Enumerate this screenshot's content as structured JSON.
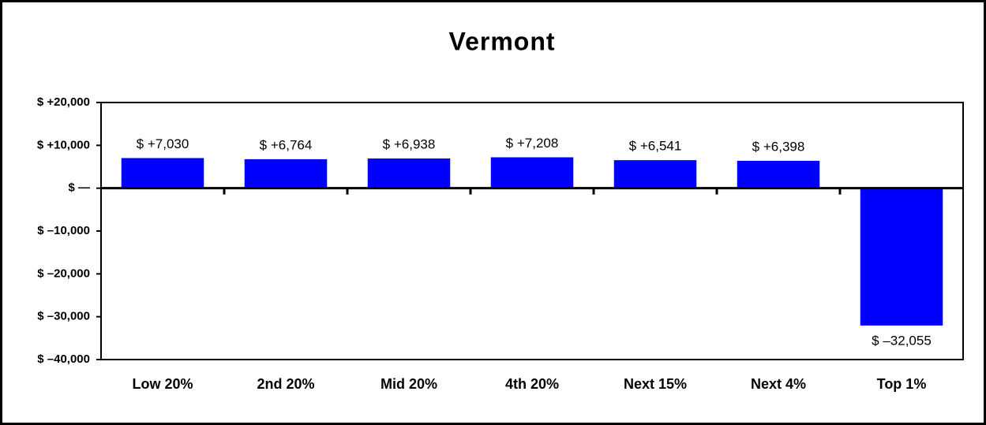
{
  "chart_data": {
    "type": "bar",
    "title": "Vermont",
    "categories": [
      "Low 20%",
      "2nd 20%",
      "Mid 20%",
      "4th 20%",
      "Next 15%",
      "Next 4%",
      "Top 1%"
    ],
    "values": [
      7030,
      6764,
      6938,
      7208,
      6541,
      6398,
      -32055
    ],
    "value_labels": [
      "$ +7,030",
      "$ +6,764",
      "$ +6,938",
      "$ +7,208",
      "$ +6,541",
      "$ +6,398",
      "$ –32,055"
    ],
    "color": "#0000ff",
    "ylim": [
      -40000,
      20000
    ],
    "yticks": [
      {
        "value": 20000,
        "label": "$ +20,000"
      },
      {
        "value": 10000,
        "label": "$ +10,000"
      },
      {
        "value": 0,
        "label": "$ —"
      },
      {
        "value": -10000,
        "label": "$ –10,000"
      },
      {
        "value": -20000,
        "label": "$ –20,000"
      },
      {
        "value": -30000,
        "label": "$ –30,000"
      },
      {
        "value": -40000,
        "label": "$ –40,000"
      }
    ],
    "grid": false
  }
}
